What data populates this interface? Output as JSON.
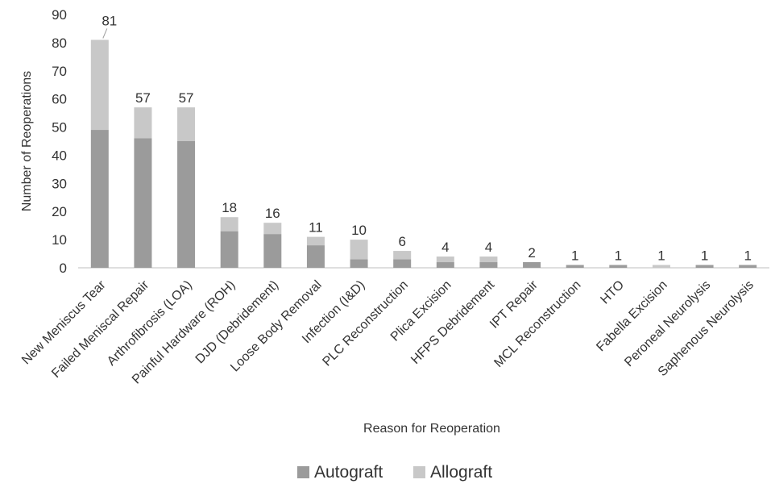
{
  "chart_data": {
    "type": "bar",
    "stacked": true,
    "title": "",
    "xlabel": "Reason for Reoperation",
    "ylabel": "Number of Reoperations",
    "ylim": [
      0,
      90
    ],
    "yticks": [
      0,
      10,
      20,
      30,
      40,
      50,
      60,
      70,
      80,
      90
    ],
    "grid": false,
    "legend_position": "bottom",
    "categories": [
      "New Meniscus Tear",
      "Failed Meniscal Repair",
      "Arthrofibrosis (LOA)",
      "Painful Hardware (ROH)",
      "DJD (Debridement)",
      "Loose Body Removal",
      "Infection (I&D)",
      "PLC Reconstruction",
      "Plica Excision",
      "HFPS Debridement",
      "IPT Repair",
      "MCL Reconstruction",
      "HTO",
      "Fabella Excision",
      "Peroneal Neurolysis",
      "Saphenous Neurolysis"
    ],
    "series": [
      {
        "name": "Autograft",
        "color": "#9b9b9b",
        "values": [
          49,
          46,
          45,
          13,
          12,
          8,
          3,
          3,
          2,
          2,
          2,
          1,
          1,
          0,
          1,
          1
        ]
      },
      {
        "name": "Allograft",
        "color": "#c8c8c8",
        "values": [
          32,
          11,
          12,
          5,
          4,
          3,
          7,
          3,
          2,
          2,
          0,
          0,
          0,
          1,
          0,
          0
        ]
      }
    ],
    "totals": [
      81,
      57,
      57,
      18,
      16,
      11,
      10,
      6,
      4,
      4,
      2,
      1,
      1,
      1,
      1,
      1
    ]
  }
}
